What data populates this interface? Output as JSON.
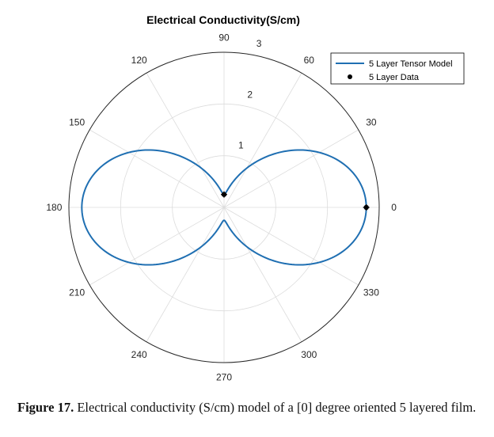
{
  "chart_data": {
    "type": "polar-line",
    "title": "Electrical Conductivity(S/cm)",
    "angle_unit": "degrees",
    "angle_ticks": [
      0,
      30,
      60,
      90,
      120,
      150,
      180,
      210,
      240,
      270,
      300,
      330
    ],
    "angle_tick_labels": [
      "0",
      "30",
      "60",
      "90",
      "120",
      "150",
      "180",
      "210",
      "240",
      "270",
      "300",
      "330"
    ],
    "r_range": [
      0,
      3
    ],
    "r_ticks": [
      1,
      2,
      3
    ],
    "r_tick_labels": [
      "1",
      "2",
      "3"
    ],
    "r_label_angle_deg": 80,
    "grid": true,
    "legend_position": "top-right",
    "series": [
      {
        "name": "5 Layer Tensor Model",
        "kind": "line",
        "color": "#1f6fb2",
        "model": "r = r0*cos^2(theta) + r90*sin^2(theta)",
        "r0": 2.75,
        "r90": 0.25
      },
      {
        "name": "5 Layer Data",
        "kind": "points",
        "color": "#000000",
        "theta_deg": [
          0,
          90
        ],
        "r": [
          2.75,
          0.25
        ]
      }
    ]
  },
  "caption": {
    "label": "Figure 17.",
    "text": " Electrical conductivity (S/cm) model of a [0] degree oriented 5 layered film."
  }
}
